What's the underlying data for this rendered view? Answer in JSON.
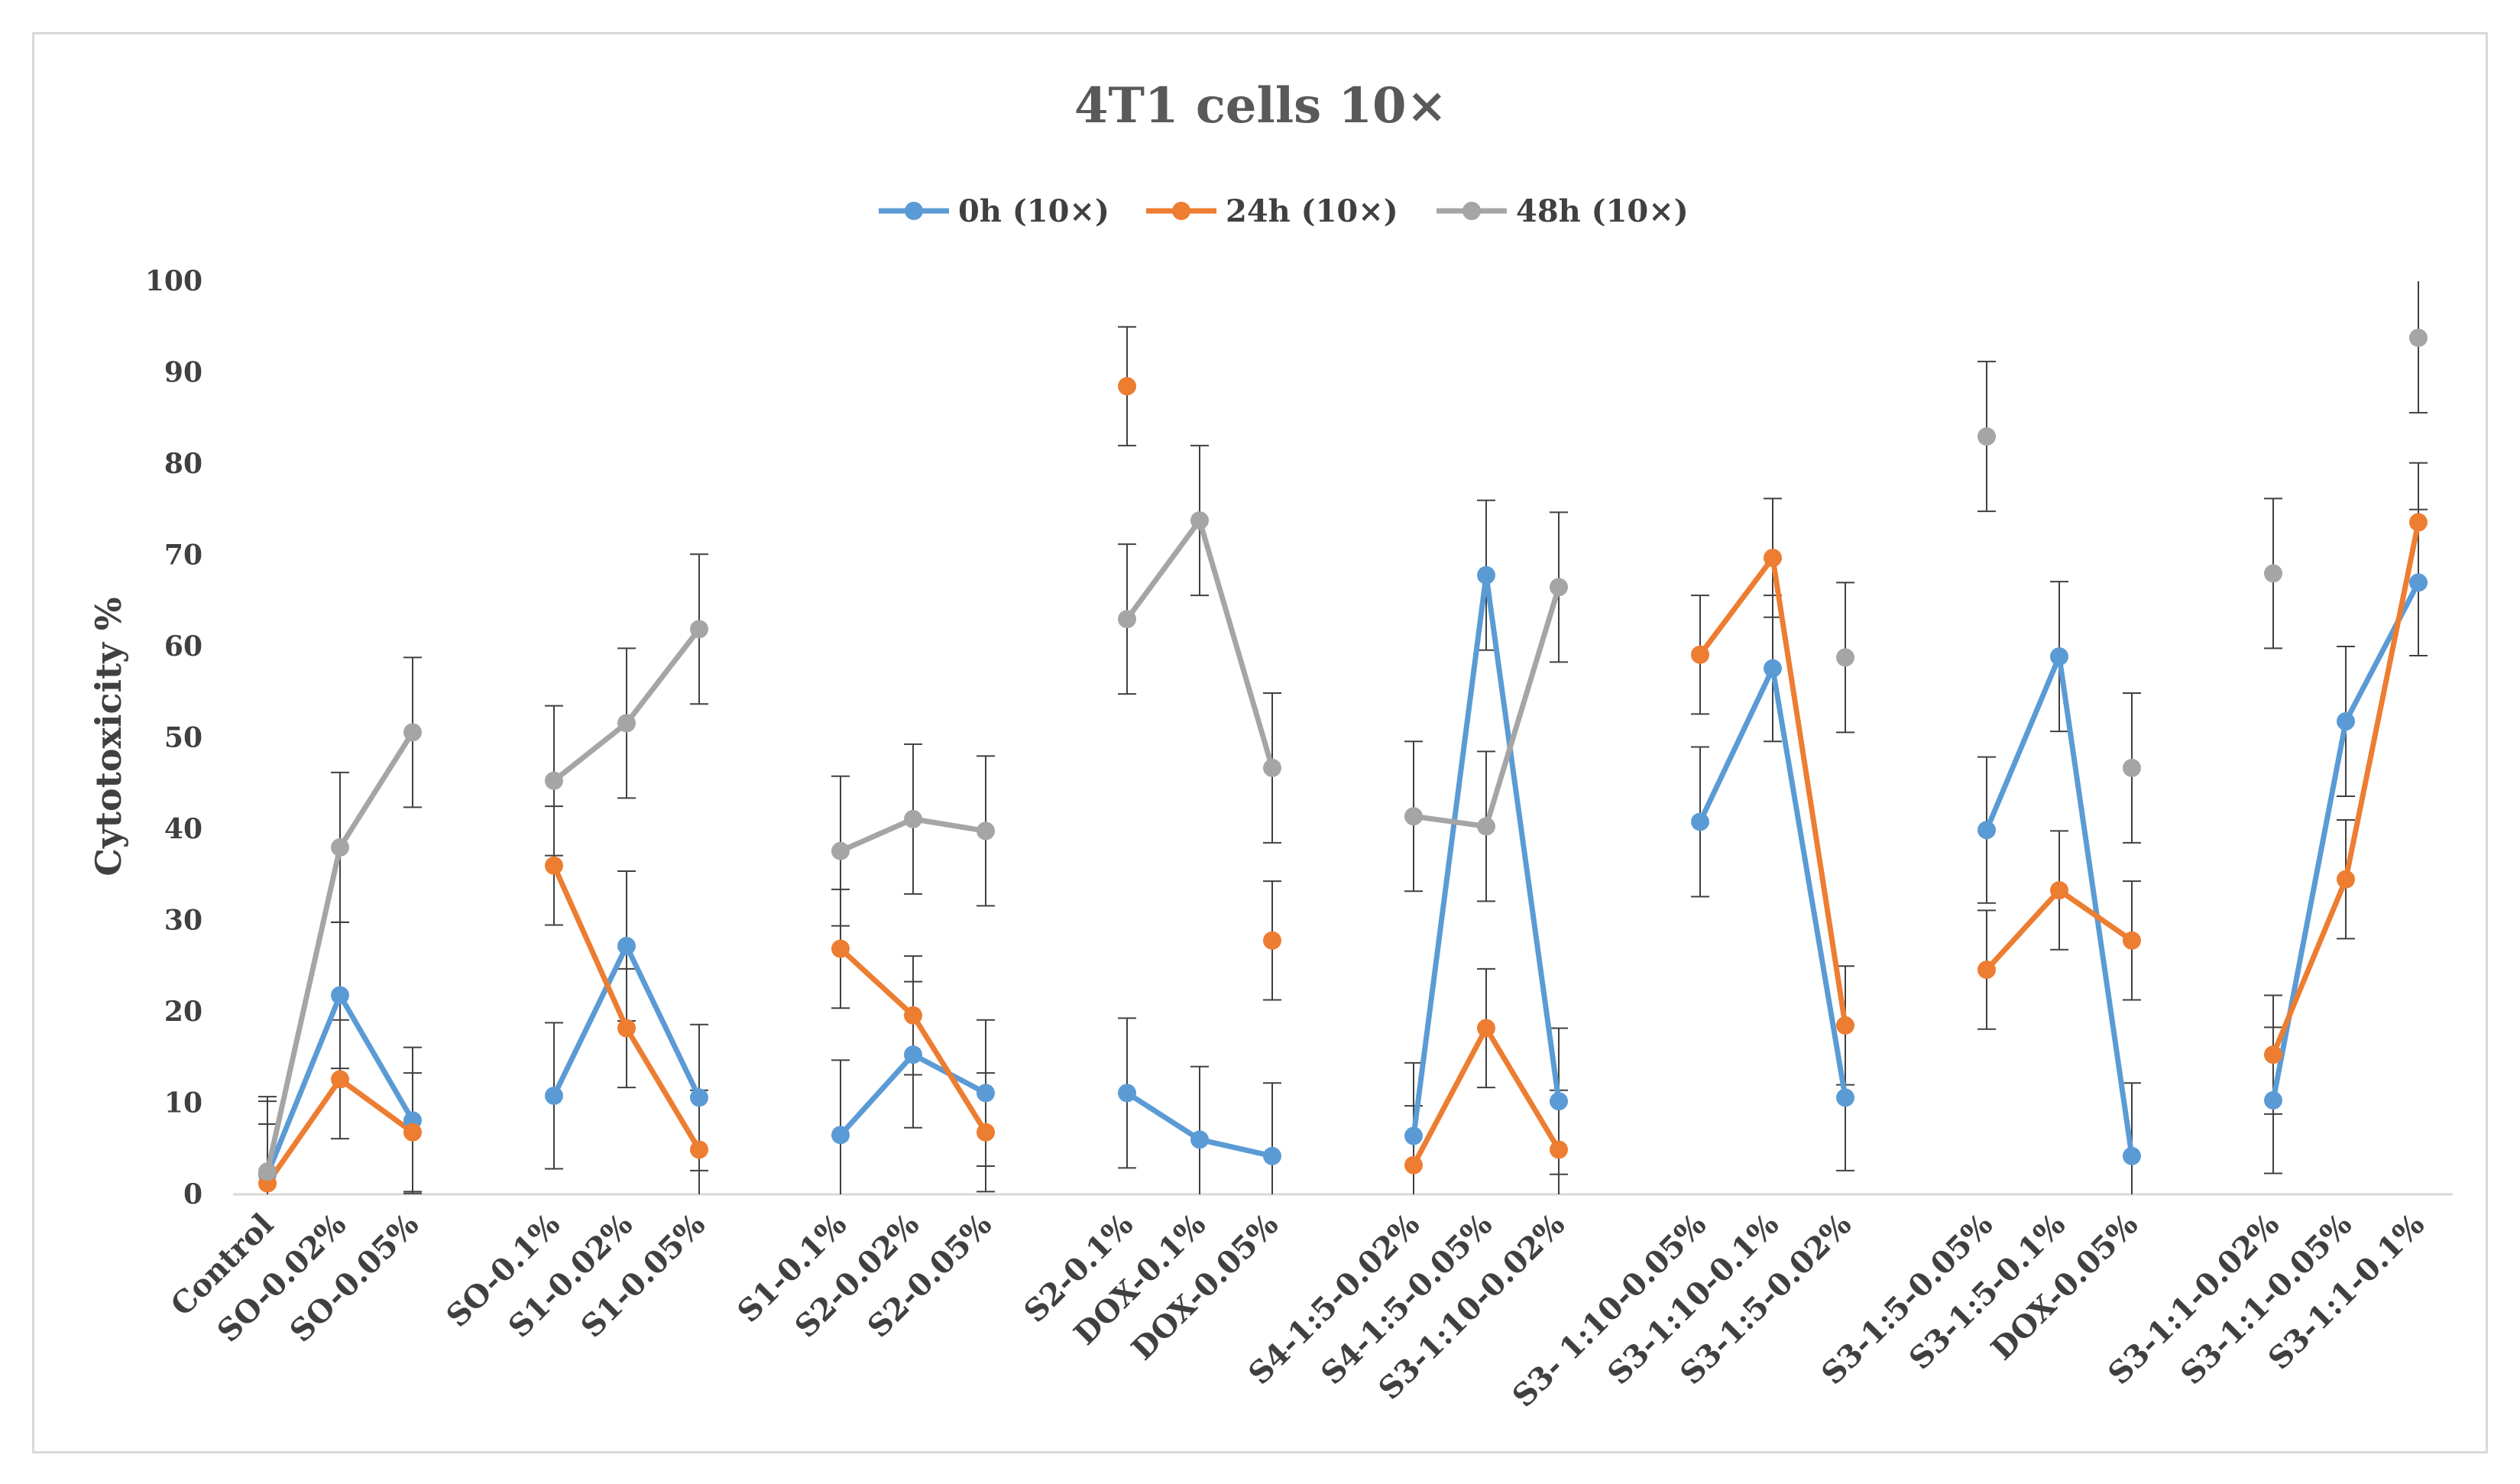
{
  "chart_data": {
    "type": "line",
    "title": "4T1 cells 10×",
    "xlabel": "",
    "ylabel": "Cytotoxicity %",
    "ylim": [
      0,
      100
    ],
    "yticks": [
      0,
      10,
      20,
      30,
      40,
      50,
      60,
      70,
      80,
      90,
      100
    ],
    "grid": false,
    "legend_position": "top",
    "groups": [
      {
        "categories": [
          "Control",
          "SO-0.02%",
          "SO-0.05%"
        ]
      },
      {
        "categories": [
          "SO-0.1%",
          "S1-0.02%",
          "S1-0.05%"
        ]
      },
      {
        "categories": [
          "S1-0.1%",
          "S2-0.02%",
          "S2-0.05%"
        ]
      },
      {
        "categories": [
          "S2-0.1%",
          "DOX-0.1%",
          "DOX-0.05%"
        ]
      },
      {
        "categories": [
          "S4-1:5-0.02%",
          "S4-1:5-0.05%",
          "S3-1:10-0.02%"
        ]
      },
      {
        "categories": [
          "S3- 1:10-0.05%",
          "S3-1:10-0.1%",
          "S3-1:5-0.02%"
        ]
      },
      {
        "categories": [
          "S3-1:5-0.05%",
          "S3-1:5-0.1%",
          "DOX-0.05%"
        ]
      },
      {
        "categories": [
          "S3-1:1-0.02%",
          "S3-1:1-0.05%",
          "S3-1:1-0.1%"
        ]
      }
    ],
    "series": [
      {
        "name": "0h (10×)",
        "color": "#5b9bd5",
        "values": [
          [
            2.2,
            21.8,
            8.1
          ],
          [
            10.8,
            27.2,
            10.6
          ],
          [
            6.5,
            15.3,
            11.1
          ],
          [
            11.1,
            6.0,
            4.2
          ],
          [
            6.4,
            67.8,
            10.2
          ],
          [
            40.8,
            57.6,
            10.6
          ],
          [
            39.9,
            58.9,
            4.2
          ],
          [
            10.3,
            51.8,
            67.0
          ]
        ],
        "errors": [
          [
            8.0,
            8.0,
            8.0
          ],
          [
            8.0,
            8.2,
            8.0
          ],
          [
            8.2,
            8.0,
            8.0
          ],
          [
            8.2,
            8.0,
            8.0
          ],
          [
            8.0,
            8.2,
            8.0
          ],
          [
            8.2,
            8.0,
            8.0
          ],
          [
            8.0,
            8.2,
            8.0
          ],
          [
            8.0,
            8.2,
            8.0
          ]
        ]
      },
      {
        "name": "24h (10×)",
        "color": "#ed7d31",
        "values": [
          [
            1.2,
            12.6,
            6.8
          ],
          [
            36.0,
            18.2,
            4.9
          ],
          [
            26.9,
            19.6,
            6.8
          ],
          [
            88.5,
            null,
            27.8
          ],
          [
            3.2,
            18.2,
            4.9
          ],
          [
            59.1,
            69.7,
            18.5
          ],
          [
            24.6,
            33.3,
            27.8
          ],
          [
            15.3,
            34.5,
            73.6
          ]
        ],
        "errors": [
          [
            6.5,
            6.5,
            6.5
          ],
          [
            6.5,
            6.5,
            6.5
          ],
          [
            6.5,
            6.5,
            6.5
          ],
          [
            6.5,
            6.5,
            6.5
          ],
          [
            6.5,
            6.5,
            6.5
          ],
          [
            6.5,
            6.5,
            6.5
          ],
          [
            6.5,
            6.5,
            6.5
          ],
          [
            6.5,
            6.5,
            6.5
          ]
        ]
      },
      {
        "name": "48h (10×)",
        "color": "#a5a5a5",
        "values": [
          [
            2.5,
            38.0,
            50.6
          ],
          [
            45.3,
            51.6,
            61.9
          ],
          [
            37.6,
            41.1,
            39.8
          ],
          [
            63.0,
            73.8,
            46.7
          ],
          [
            41.4,
            40.3,
            66.5
          ],
          [
            null,
            null,
            58.8
          ],
          [
            83.0,
            null,
            46.7
          ],
          [
            68.0,
            null,
            93.8
          ]
        ],
        "errors": [
          [
            8.2,
            8.2,
            8.2
          ],
          [
            8.2,
            8.2,
            8.2
          ],
          [
            8.2,
            8.2,
            8.2
          ],
          [
            8.2,
            8.2,
            8.2
          ],
          [
            8.2,
            8.2,
            8.2
          ],
          [
            8.2,
            8.2,
            8.2
          ],
          [
            8.2,
            8.2,
            8.2
          ],
          [
            8.2,
            8.2,
            8.2
          ]
        ]
      }
    ]
  }
}
